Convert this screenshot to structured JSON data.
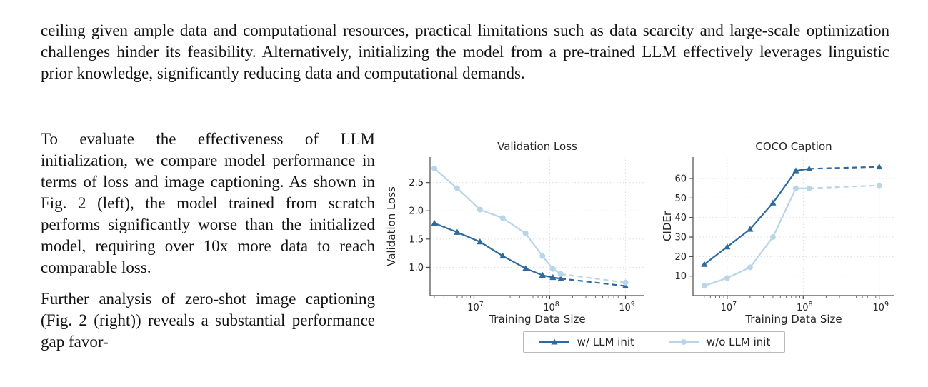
{
  "document": {
    "paragraph_top": "ceiling given ample data and computational resources, practical limitations such as data scarcity and large-scale optimization challenges hinder its feasibility. Alternatively, initializing the model from a pre-trained LLM effectively leverages linguistic prior knowledge, significantly reducing data and computational demands.",
    "paragraph_left_1": "To evaluate the effectiveness of LLM initialization, we compare model performance in terms of loss and image captioning. As shown in Fig. 2 (left), the model trained from scratch performs significantly worse than the initialized model, requiring over 10x more data to reach comparable loss.",
    "paragraph_left_2": "Further analysis of zero-shot image captioning (Fig. 2 (right)) reveals a substantial performance gap favor-"
  },
  "figure": {
    "colors": {
      "dark": "#2e6a9e",
      "light": "#b9d5e9"
    },
    "legend": [
      {
        "label": "w/ LLM init",
        "color_key": "dark",
        "marker": "triangle"
      },
      {
        "label": "w/o LLM init",
        "color_key": "light",
        "marker": "circle"
      }
    ]
  },
  "chart_data": [
    {
      "type": "line",
      "title": "Validation Loss",
      "xlabel": "Training Data Size",
      "ylabel": "Validation Loss",
      "xscale": "log",
      "xlog_range": [
        6.42,
        9.25
      ],
      "xticks": [
        7,
        8,
        9
      ],
      "ylim": [
        0.5,
        2.95
      ],
      "yticks": [
        1.0,
        1.5,
        2.0,
        2.5
      ],
      "ytick_labels": [
        "1.0",
        "1.5",
        "2.0",
        "2.5"
      ],
      "grid": true,
      "legend_position": "below-figure",
      "series": [
        {
          "name": "w/ LLM init",
          "color_key": "dark",
          "marker": "triangle",
          "x": [
            3000000.0,
            6000000.0,
            12000000.0,
            24000000.0,
            48000000.0,
            80000000.0,
            110000000.0,
            140000000.0,
            1000000000.0
          ],
          "y": [
            1.78,
            1.62,
            1.45,
            1.2,
            0.98,
            0.86,
            0.82,
            0.8,
            0.67
          ],
          "solid_until": 7
        },
        {
          "name": "w/o LLM init",
          "color_key": "light",
          "marker": "circle",
          "x": [
            3000000.0,
            6000000.0,
            12000000.0,
            24000000.0,
            48000000.0,
            80000000.0,
            110000000.0,
            140000000.0,
            1000000000.0
          ],
          "y": [
            2.75,
            2.4,
            2.02,
            1.87,
            1.6,
            1.2,
            0.97,
            0.88,
            0.73
          ],
          "solid_until": 7
        }
      ]
    },
    {
      "type": "line",
      "title": "COCO Caption",
      "xlabel": "Training Data Size",
      "ylabel": "CIDEr",
      "xscale": "log",
      "xlog_range": [
        6.55,
        9.2
      ],
      "xticks": [
        7,
        8,
        9
      ],
      "ylim": [
        0,
        71
      ],
      "yticks": [
        10,
        20,
        30,
        40,
        50,
        60
      ],
      "ytick_labels": [
        "10",
        "20",
        "30",
        "40",
        "50",
        "60"
      ],
      "grid": true,
      "legend_position": "below-figure",
      "series": [
        {
          "name": "w/ LLM init",
          "color_key": "dark",
          "marker": "triangle",
          "x": [
            5000000.0,
            10000000.0,
            20000000.0,
            40000000.0,
            80000000.0,
            120000000.0,
            1000000000.0
          ],
          "y": [
            16,
            25,
            34,
            47.5,
            64,
            65,
            66
          ],
          "solid_until": 5
        },
        {
          "name": "w/o LLM init",
          "color_key": "light",
          "marker": "circle",
          "x": [
            5000000.0,
            10000000.0,
            20000000.0,
            40000000.0,
            80000000.0,
            120000000.0,
            1000000000.0
          ],
          "y": [
            5,
            9,
            14.5,
            30,
            55,
            55,
            56.5
          ],
          "solid_until": 5
        }
      ]
    }
  ]
}
